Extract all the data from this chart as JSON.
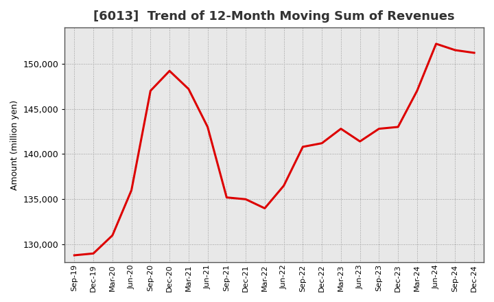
{
  "title": "[6013]  Trend of 12-Month Moving Sum of Revenues",
  "ylabel": "Amount (million yen)",
  "line_color": "#dd0000",
  "background_color": "#ffffff",
  "plot_bg_color": "#e8e8e8",
  "grid_color": "#999999",
  "ylim": [
    128000,
    154000
  ],
  "yticks": [
    130000,
    135000,
    140000,
    145000,
    150000
  ],
  "x_labels": [
    "Sep-19",
    "Dec-19",
    "Mar-20",
    "Jun-20",
    "Sep-20",
    "Dec-20",
    "Mar-21",
    "Jun-21",
    "Sep-21",
    "Dec-21",
    "Mar-22",
    "Jun-22",
    "Sep-22",
    "Dec-22",
    "Mar-23",
    "Jun-23",
    "Sep-23",
    "Dec-23",
    "Mar-24",
    "Jun-24",
    "Sep-24",
    "Dec-24"
  ],
  "values": [
    128800,
    129000,
    131000,
    136000,
    147000,
    149200,
    147200,
    143000,
    135200,
    135000,
    134000,
    136500,
    140800,
    141200,
    142800,
    141400,
    142800,
    143000,
    147000,
    152200,
    151500,
    151200
  ],
  "title_fontsize": 13,
  "ylabel_fontsize": 9,
  "xtick_fontsize": 8,
  "ytick_fontsize": 9,
  "linewidth": 2.2
}
